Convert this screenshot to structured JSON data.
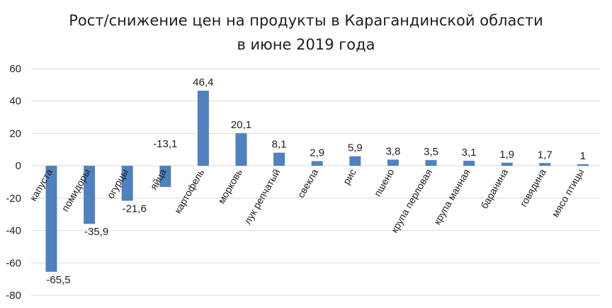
{
  "chart_data": {
    "type": "bar",
    "title_lines": [
      "Рост/снижение цен на продукты в Карагандинской области",
      "в июне 2019 года"
    ],
    "xlabel": "",
    "ylabel": "",
    "ylim": [
      -80,
      60
    ],
    "yticks": [
      60,
      40,
      20,
      0,
      -20,
      -40,
      -60,
      -80
    ],
    "grid": true,
    "legend": "none",
    "bar_color": "#4f81bd",
    "categories": [
      "капуста",
      "помидоры",
      "огурцы",
      "яйца",
      "картофель",
      "морковь",
      "лук репчатый",
      "свекла",
      "рис",
      "пшено",
      "крупа перловая",
      "крупа манная",
      "баранина",
      "говядина",
      "мясо птицы"
    ],
    "values": [
      -65.5,
      -35.9,
      -21.6,
      -13.1,
      46.4,
      20.1,
      8.1,
      2.9,
      5.9,
      3.8,
      3.5,
      3.1,
      1.9,
      1.7,
      1
    ],
    "value_labels": [
      "-65,5",
      "-35,9",
      "-21,6",
      "-13,1",
      "46,4",
      "20,1",
      "8,1",
      "2,9",
      "5,9",
      "3,8",
      "3,5",
      "3,1",
      "1,9",
      "1,7",
      "1"
    ]
  }
}
